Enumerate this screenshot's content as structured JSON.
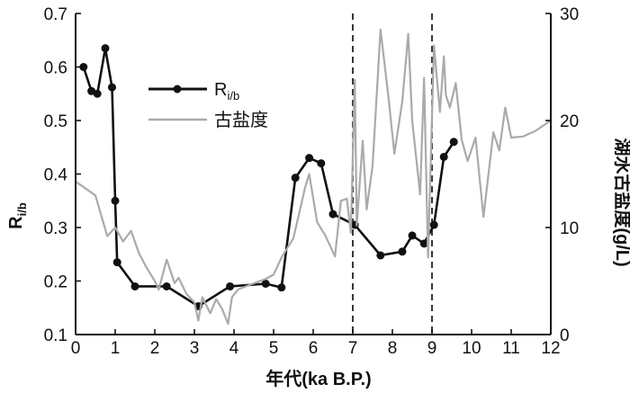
{
  "chart_data": {
    "type": "line",
    "xlabel": "年代(ka B.P.)",
    "ylabel_left": "R",
    "ylabel_left_sub": "i/b",
    "ylabel_right": "湖水古盐度(g/L)",
    "xlim": [
      0,
      12
    ],
    "ylim_left": [
      0.1,
      0.7
    ],
    "ylim_right": [
      0,
      30
    ],
    "x_ticks": [
      "0",
      "1",
      "2",
      "3",
      "4",
      "5",
      "6",
      "7",
      "8",
      "9",
      "10",
      "11",
      "12"
    ],
    "y_left_ticks": [
      "0.1",
      "0.2",
      "0.3",
      "0.4",
      "0.5",
      "0.6",
      "0.7"
    ],
    "y_right_ticks": [
      "0",
      "10",
      "20",
      "30"
    ],
    "vertical_dashed_lines": [
      7,
      9
    ],
    "legend_position": "upper-left",
    "series": [
      {
        "name": "R",
        "name_sub": "i/b",
        "axis": "left",
        "color": "#111111",
        "marker": "circle",
        "x": [
          0.2,
          0.4,
          0.55,
          0.75,
          0.92,
          1.0,
          1.05,
          1.5,
          2.3,
          3.1,
          3.9,
          4.8,
          5.2,
          5.55,
          5.9,
          6.2,
          6.5,
          7.05,
          7.7,
          8.25,
          8.5,
          8.8,
          9.05,
          9.3,
          9.55
        ],
        "values": [
          0.6,
          0.555,
          0.55,
          0.635,
          0.562,
          0.35,
          0.235,
          0.19,
          0.19,
          0.153,
          0.19,
          0.195,
          0.188,
          0.393,
          0.43,
          0.42,
          0.325,
          0.305,
          0.248,
          0.255,
          0.285,
          0.27,
          0.305,
          0.432,
          0.46
        ]
      },
      {
        "name": "古盐度",
        "axis": "right",
        "color": "#aaaaaa",
        "marker": "none",
        "x": [
          0.0,
          0.5,
          0.8,
          1.0,
          1.2,
          1.4,
          1.6,
          1.8,
          2.0,
          2.1,
          2.3,
          2.5,
          2.6,
          2.8,
          3.0,
          3.1,
          3.2,
          3.4,
          3.55,
          3.7,
          3.85,
          3.95,
          4.1,
          4.3,
          4.8,
          5.0,
          5.2,
          5.5,
          5.8,
          5.9,
          6.1,
          6.3,
          6.55,
          6.7,
          6.85,
          6.95,
          7.05,
          7.1,
          7.25,
          7.35,
          7.5,
          7.7,
          7.9,
          8.05,
          8.25,
          8.4,
          8.5,
          8.7,
          8.8,
          8.9,
          9.05,
          9.2,
          9.3,
          9.35,
          9.45,
          9.6,
          9.75,
          9.9,
          10.1,
          10.3,
          10.55,
          10.7,
          10.85,
          11.0,
          11.3,
          11.6,
          12.0
        ],
        "values": [
          14.3,
          13.0,
          9.2,
          10.0,
          8.7,
          9.7,
          7.6,
          6.2,
          5.0,
          4.2,
          7.0,
          4.8,
          5.3,
          3.8,
          3.0,
          1.3,
          3.5,
          2.0,
          3.3,
          2.4,
          1.0,
          3.5,
          4.2,
          4.5,
          5.2,
          5.6,
          7.2,
          9.0,
          13.8,
          15.0,
          10.5,
          9.3,
          7.3,
          12.5,
          12.7,
          9.5,
          23.8,
          10.2,
          18.1,
          11.7,
          15.8,
          28.5,
          22.2,
          16.9,
          21.8,
          28.1,
          20.0,
          13.1,
          24.0,
          7.2,
          27.0,
          20.8,
          26.0,
          22.4,
          21.2,
          23.5,
          18.2,
          16.2,
          18.4,
          11.0,
          18.9,
          17.2,
          21.2,
          18.4,
          18.5,
          19.0,
          20.0
        ]
      }
    ]
  }
}
